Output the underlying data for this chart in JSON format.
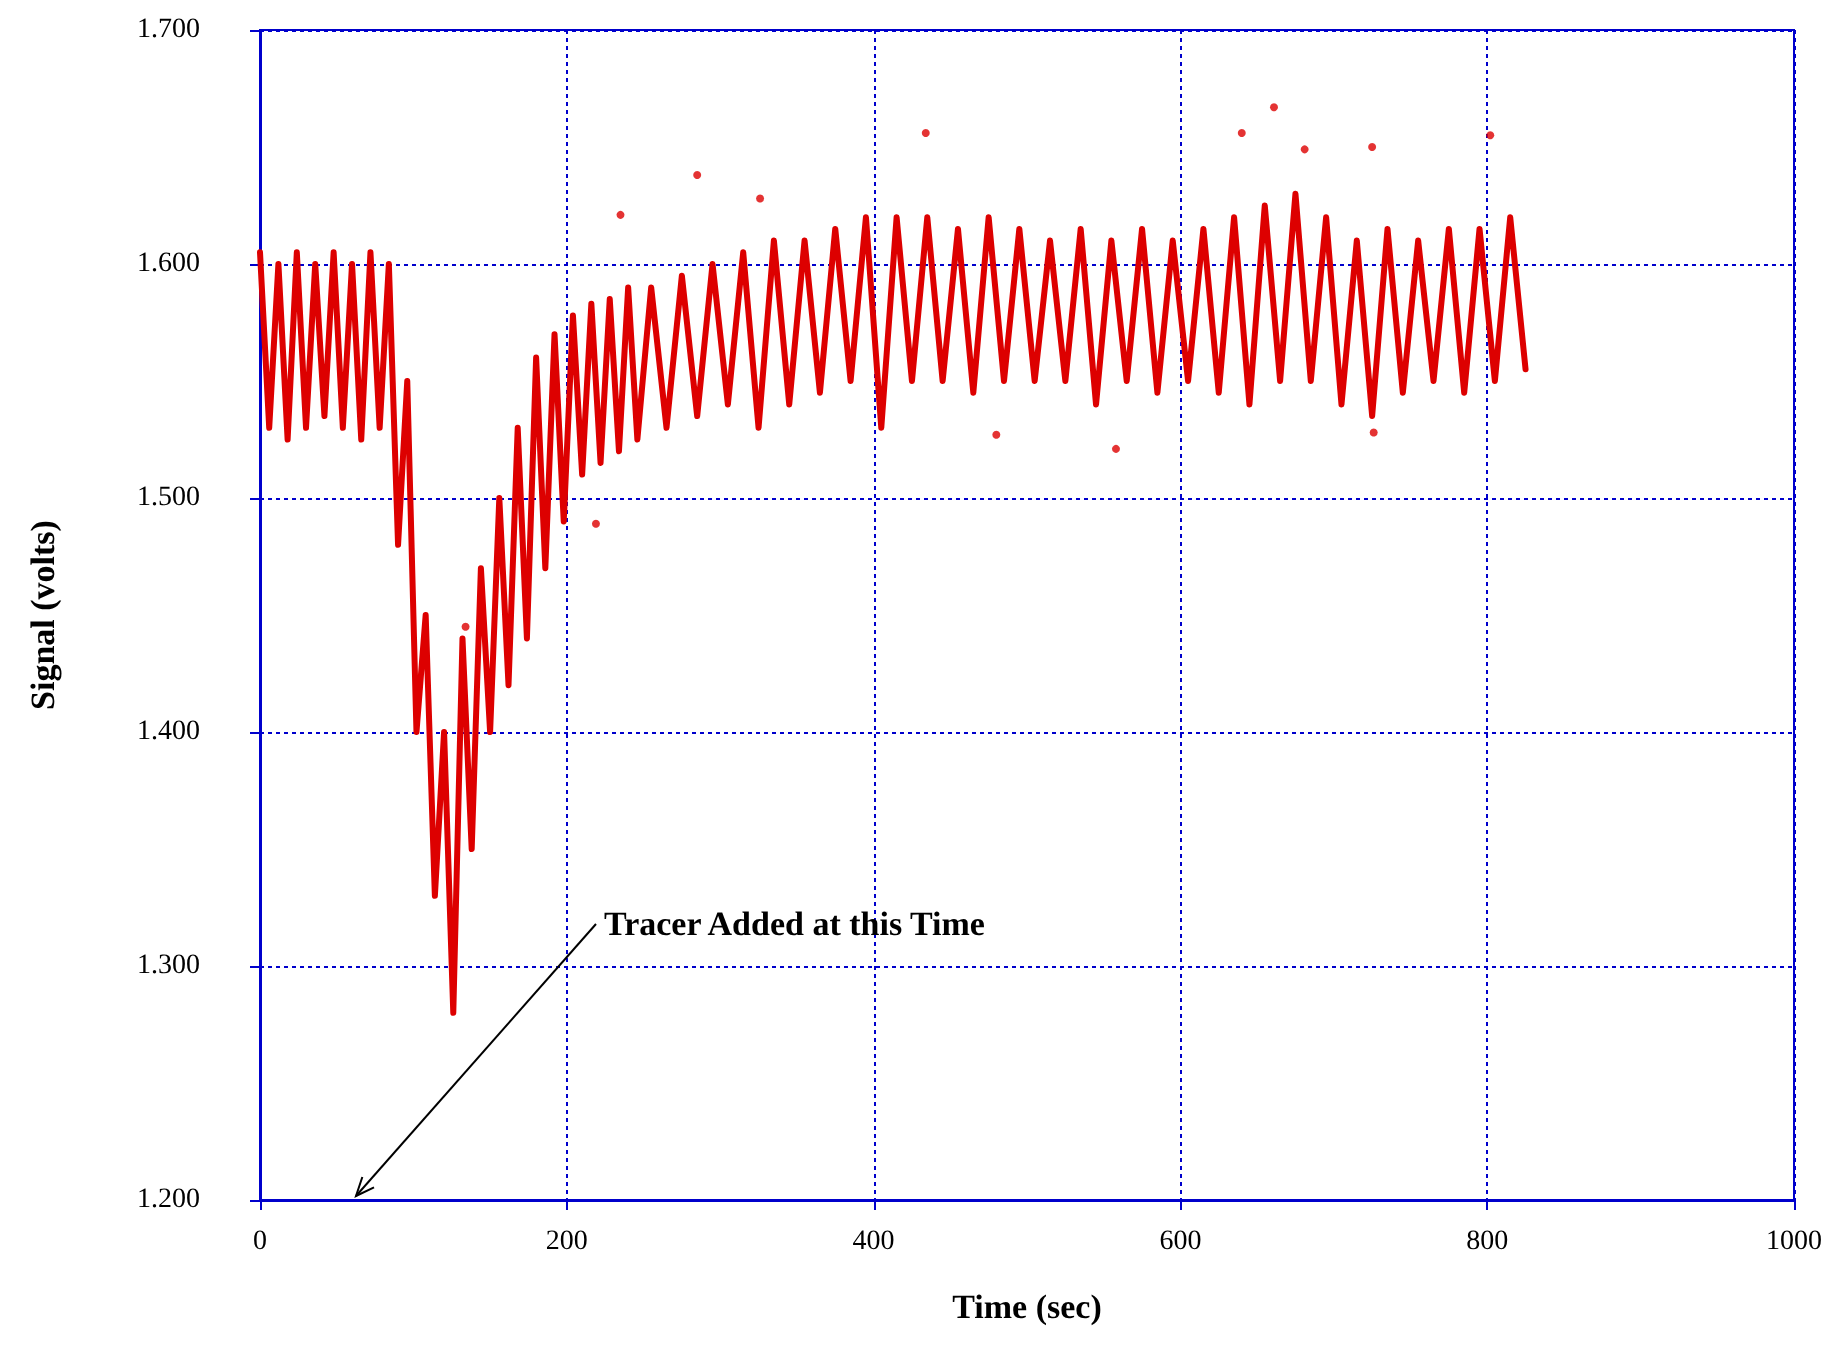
{
  "chart_data": {
    "type": "line",
    "xlabel": "Time (sec)",
    "ylabel": "Signal (volts)",
    "xlim": [
      0,
      1000
    ],
    "xticks": [
      0,
      200,
      400,
      600,
      800,
      1000
    ],
    "ylim": [
      1.2,
      1.7
    ],
    "yticks": [
      {
        "value": 1.2,
        "label": "1.200"
      },
      {
        "value": 1.3,
        "label": "1.300"
      },
      {
        "value": 1.4,
        "label": "1.400"
      },
      {
        "value": 1.5,
        "label": "1.500"
      },
      {
        "value": 1.6,
        "label": "1.600"
      },
      {
        "value": 1.7,
        "label": "1.700"
      }
    ],
    "grid": true,
    "marker": "none",
    "line_style": "solid",
    "annotations": [
      "Tracer Added at this Time"
    ],
    "series": [
      {
        "color": "#dd0000",
        "x": [
          0,
          6,
          12,
          18,
          24,
          30,
          36,
          42,
          48,
          54,
          60,
          66,
          72,
          78,
          84,
          90,
          96,
          102,
          108,
          114,
          120,
          126,
          132,
          138,
          144,
          150,
          156,
          162,
          168,
          174,
          180,
          186,
          192,
          198,
          204,
          210,
          216,
          222,
          228,
          234,
          240,
          246,
          255,
          265,
          275,
          285,
          295,
          305,
          315,
          325,
          335,
          345,
          355,
          365,
          375,
          385,
          395,
          405,
          415,
          425,
          435,
          445,
          455,
          465,
          475,
          485,
          495,
          505,
          515,
          525,
          535,
          545,
          555,
          565,
          575,
          585,
          595,
          605,
          615,
          625,
          635,
          645,
          655,
          665,
          675,
          685,
          695,
          705,
          715,
          725,
          735,
          745,
          755,
          765,
          775,
          785,
          795,
          805,
          815,
          825
        ],
        "values": [
          1.605,
          1.53,
          1.6,
          1.525,
          1.605,
          1.53,
          1.6,
          1.535,
          1.605,
          1.53,
          1.6,
          1.525,
          1.605,
          1.53,
          1.6,
          1.48,
          1.55,
          1.4,
          1.45,
          1.33,
          1.4,
          1.28,
          1.44,
          1.35,
          1.47,
          1.4,
          1.5,
          1.42,
          1.53,
          1.44,
          1.56,
          1.47,
          1.57,
          1.49,
          1.578,
          1.51,
          1.583,
          1.515,
          1.585,
          1.52,
          1.59,
          1.525,
          1.59,
          1.53,
          1.595,
          1.535,
          1.6,
          1.54,
          1.605,
          1.53,
          1.61,
          1.54,
          1.61,
          1.545,
          1.615,
          1.55,
          1.62,
          1.53,
          1.62,
          1.55,
          1.62,
          1.55,
          1.615,
          1.545,
          1.62,
          1.55,
          1.615,
          1.55,
          1.61,
          1.55,
          1.615,
          1.54,
          1.61,
          1.55,
          1.615,
          1.545,
          1.61,
          1.55,
          1.615,
          1.545,
          1.62,
          1.54,
          1.625,
          1.55,
          1.63,
          1.55,
          1.62,
          1.54,
          1.61,
          1.535,
          1.615,
          1.545,
          1.61,
          1.55,
          1.615,
          1.545,
          1.615,
          1.55,
          1.62,
          1.555
        ]
      },
      {
        "type": "scatter",
        "color": "#dd0000",
        "marker": "circle",
        "x": [
          134,
          219,
          235,
          285,
          326,
          434,
          480,
          558,
          640,
          661,
          681,
          725,
          726,
          802
        ],
        "values": [
          1.445,
          1.489,
          1.621,
          1.638,
          1.628,
          1.656,
          1.527,
          1.521,
          1.656,
          1.667,
          1.649,
          1.65,
          1.528,
          1.655
        ]
      }
    ]
  }
}
